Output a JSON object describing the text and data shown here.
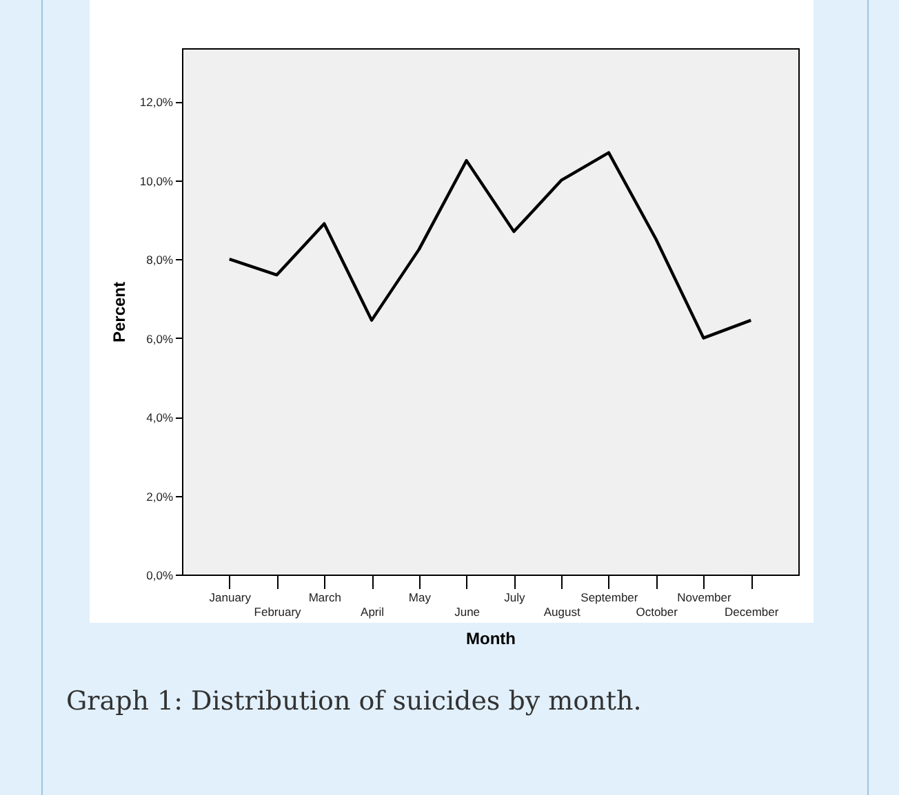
{
  "chart_data": {
    "type": "line",
    "xlabel": "Month",
    "ylabel": "Percent",
    "categories": [
      "January",
      "February",
      "March",
      "April",
      "May",
      "June",
      "July",
      "August",
      "September",
      "October",
      "November",
      "December"
    ],
    "series": [
      {
        "color": "#000000",
        "values": [
          8.0,
          7.6,
          8.9,
          6.45,
          8.25,
          10.5,
          8.7,
          10.0,
          10.7,
          8.5,
          6.0,
          6.45
        ]
      }
    ],
    "ylim": [
      0,
      13.35
    ],
    "yticks": [
      {
        "value": 0,
        "label": "0,0%"
      },
      {
        "value": 2,
        "label": "2,0%"
      },
      {
        "value": 4,
        "label": "4,0%"
      },
      {
        "value": 6,
        "label": "6,0%"
      },
      {
        "value": 8,
        "label": "8,0%"
      },
      {
        "value": 10,
        "label": "10,0%"
      },
      {
        "value": 12,
        "label": "12,0%"
      }
    ],
    "grid": false,
    "legend": false,
    "marker": "none",
    "line_style": "solid",
    "annotations": [
      "Graph 1: Distribution of suicides by month."
    ]
  }
}
